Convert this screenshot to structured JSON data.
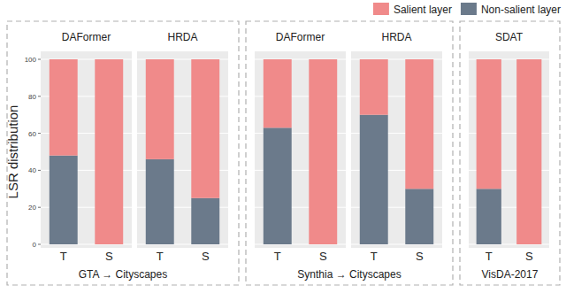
{
  "chart_data": [
    {
      "type": "bar",
      "stacked": true,
      "xlabel": "GTA → Cityscapes",
      "ylabel": "LSR distribution",
      "panels": [
        "DAFormer",
        "HRDA"
      ],
      "categories": [
        "T",
        "S",
        "T",
        "S"
      ],
      "series": [
        {
          "name": "Salient layer",
          "color": "#f08a8a",
          "values": [
            52,
            100,
            54,
            75
          ]
        },
        {
          "name": "Non-salient layer",
          "color": "#6b7a8b",
          "values": [
            48,
            0,
            46,
            25
          ]
        }
      ],
      "ylim": [
        0,
        100
      ],
      "yticks": [
        0,
        20,
        40,
        60,
        80,
        100
      ],
      "grid": true,
      "legend": "top-right"
    },
    {
      "type": "bar",
      "stacked": true,
      "xlabel": "Synthia → Cityscapes",
      "panels": [
        "DAFormer",
        "HRDA"
      ],
      "categories": [
        "T",
        "S",
        "T",
        "S"
      ],
      "series": [
        {
          "color": "#f08a8a",
          "values": [
            37,
            100,
            30,
            70
          ]
        },
        {
          "color": "#6b7a8b",
          "values": [
            63,
            0,
            70,
            30
          ]
        }
      ],
      "ylim": [
        0,
        100
      ],
      "yticks": [
        0,
        20,
        40,
        60,
        80,
        100
      ],
      "grid": true,
      "tick_labels": "x"
    },
    {
      "type": "bar",
      "stacked": true,
      "xlabel": "VisDA-2017",
      "panels": [
        "SDAT"
      ],
      "categories": [
        "T",
        "S"
      ],
      "series": [
        {
          "color": "#f08a8a",
          "values": [
            70,
            100
          ]
        },
        {
          "color": "#6b7a8b",
          "values": [
            30,
            0
          ]
        }
      ],
      "ylim": [
        0,
        100
      ],
      "yticks": [
        0,
        20,
        40,
        60,
        80,
        100
      ],
      "grid": true,
      "tick_labels": "x"
    }
  ]
}
